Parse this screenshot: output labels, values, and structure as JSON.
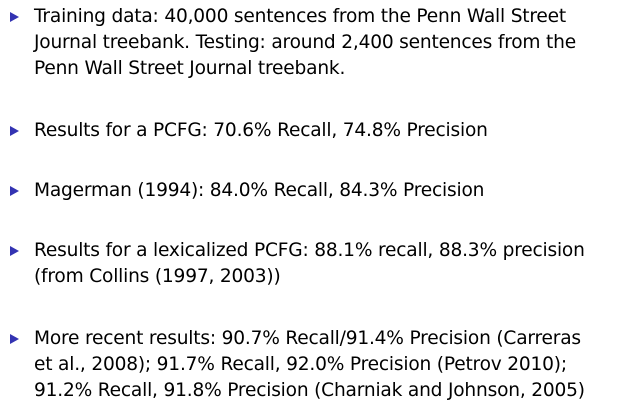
{
  "slide": {
    "bullet_color": "#3333b2",
    "items": [
      {
        "icon": "triangle-bullet-icon",
        "lines": [
          "Training data: 40,000 sentences from the Penn Wall Street",
          "Journal treebank. Testing: around 2,400 sentences from the",
          "Penn Wall Street Journal treebank."
        ]
      },
      {
        "icon": "triangle-bullet-icon",
        "lines": [
          "Results for a PCFG: 70.6% Recall, 74.8% Precision"
        ]
      },
      {
        "icon": "triangle-bullet-icon",
        "lines": [
          "Magerman (1994): 84.0% Recall, 84.3% Precision"
        ]
      },
      {
        "icon": "triangle-bullet-icon",
        "lines": [
          "Results for a lexicalized PCFG: 88.1% recall, 88.3% precision",
          "(from Collins (1997, 2003))"
        ]
      },
      {
        "icon": "triangle-bullet-icon",
        "lines": [
          "More recent results: 90.7% Recall/91.4% Precision (Carreras",
          "et al., 2008); 91.7% Recall, 92.0% Precision (Petrov 2010);",
          "91.2% Recall, 91.8% Precision (Charniak and Johnson, 2005)"
        ]
      }
    ]
  }
}
